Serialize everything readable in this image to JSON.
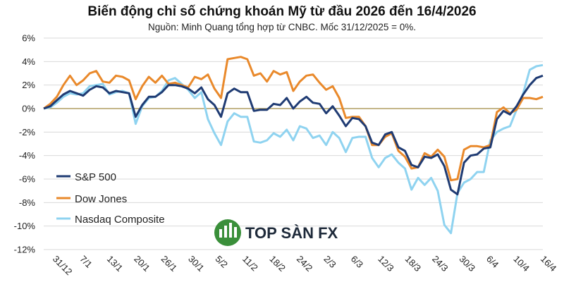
{
  "title": "Biến động chỉ số chứng khoán Mỹ từ đầu 2026 đến 16/4/2026",
  "subtitle": "Nguồn: Minh Quang tổng hợp từ CNBC. Mốc 31/12/2025 = 0%.",
  "watermark": "TOP SÀN FX",
  "colors": {
    "sp500": "#1f3b73",
    "dow": "#e9892b",
    "nasdaq": "#8fd3f0",
    "zero_line": "#a08a45",
    "grid": "#d9d9d9"
  },
  "chart_data": {
    "type": "line",
    "ylim": [
      -12,
      6
    ],
    "yticks": [
      "6%",
      "4%",
      "2%",
      "0%",
      "-2%",
      "-4%",
      "-6%",
      "-8%",
      "-10%",
      "-12%"
    ],
    "xticks": [
      "31/12",
      "7/1",
      "13/1",
      "20/1",
      "26/1",
      "30/1",
      "5/2",
      "11/2",
      "18/2",
      "24/2",
      "2/3",
      "6/3",
      "12/3",
      "18/3",
      "24/3",
      "30/3",
      "6/4",
      "10/4",
      "16/4"
    ],
    "legend_position": "left",
    "series": [
      {
        "name": "S&P 500",
        "color_key": "sp500",
        "values": [
          0,
          0.2,
          0.7,
          1.2,
          1.5,
          1.3,
          1.1,
          1.6,
          1.9,
          1.8,
          1.3,
          1.5,
          1.4,
          1.3,
          -0.7,
          0.3,
          1.0,
          1.0,
          1.4,
          2.0,
          2.0,
          1.9,
          1.7,
          1.3,
          1.8,
          0.8,
          0.3,
          -0.7,
          1.3,
          1.7,
          1.4,
          1.4,
          -0.2,
          -0.1,
          -0.1,
          0.4,
          0.3,
          0.9,
          0,
          0.6,
          1.0,
          0.5,
          0.4,
          -0.4,
          0.2,
          -0.6,
          -1.5,
          -0.8,
          -0.9,
          -1.5,
          -2.9,
          -3.1,
          -2.2,
          -2.0,
          -3.3,
          -3.6,
          -4.8,
          -5.0,
          -4.1,
          -4.2,
          -3.9,
          -4.9,
          -6.9,
          -7.3,
          -4.6,
          -4.0,
          -3.9,
          -3.4,
          -3.3,
          -0.9,
          -0.2,
          -0.5,
          0.2,
          1.2,
          2.0,
          2.6,
          2.8
        ]
      },
      {
        "name": "Dow Jones",
        "color_key": "dow",
        "values": [
          0,
          0.4,
          1.0,
          2.0,
          2.8,
          2.0,
          2.4,
          3.0,
          3.2,
          2.3,
          2.2,
          2.8,
          2.7,
          2.4,
          0.8,
          1.9,
          2.7,
          2.2,
          2.8,
          2.1,
          2.2,
          2.0,
          1.8,
          2.7,
          2.5,
          2.9,
          1.7,
          0.9,
          4.2,
          4.3,
          4.4,
          4.2,
          2.8,
          3.0,
          2.3,
          3.2,
          2.9,
          3.1,
          1.5,
          2.3,
          2.8,
          2.9,
          2.2,
          1.6,
          1.9,
          0.9,
          -0.8,
          -0.7,
          -0.7,
          -1.5,
          -3.1,
          -3.1,
          -2.4,
          -2.1,
          -3.6,
          -4.1,
          -5.1,
          -5.0,
          -3.8,
          -4.1,
          -3.5,
          -4.1,
          -6.1,
          -6.0,
          -3.5,
          -3.2,
          -3.2,
          -3.3,
          -3.1,
          -0.3,
          0.1,
          -0.4,
          -0.1,
          0.9,
          0.9,
          0.8,
          1.0
        ]
      },
      {
        "name": "Nasdaq Composite",
        "color_key": "nasdaq",
        "values": [
          0,
          0.1,
          0.5,
          1.0,
          1.3,
          1.2,
          1.3,
          1.9,
          2.0,
          2.1,
          1.2,
          1.4,
          1.5,
          1.3,
          -1.3,
          0.2,
          0.9,
          1.0,
          1.5,
          2.4,
          2.6,
          2.1,
          1.6,
          0.9,
          1.4,
          -0.9,
          -2.1,
          -3.1,
          -1.1,
          -0.4,
          -0.7,
          -0.7,
          -2.8,
          -2.9,
          -2.7,
          -2.1,
          -2.4,
          -1.8,
          -2.7,
          -1.5,
          -1.7,
          -2.5,
          -2.3,
          -3.1,
          -2.0,
          -2.5,
          -3.7,
          -2.5,
          -2.4,
          -2.4,
          -4.2,
          -5.0,
          -4.2,
          -3.9,
          -4.6,
          -5.1,
          -6.9,
          -5.9,
          -6.5,
          -5.9,
          -7.0,
          -9.9,
          -10.6,
          -7.2,
          -6.3,
          -6.0,
          -5.4,
          -5.4,
          -2.7,
          -2.0,
          -1.7,
          -1.5,
          -0.1,
          1.3,
          3.3,
          3.6,
          3.7
        ]
      }
    ]
  }
}
